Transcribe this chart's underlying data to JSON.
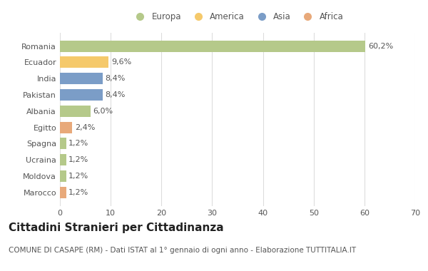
{
  "countries": [
    "Romania",
    "Ecuador",
    "India",
    "Pakistan",
    "Albania",
    "Egitto",
    "Spagna",
    "Ucraina",
    "Moldova",
    "Marocco"
  ],
  "values": [
    60.2,
    9.6,
    8.4,
    8.4,
    6.0,
    2.4,
    1.2,
    1.2,
    1.2,
    1.2
  ],
  "labels": [
    "60,2%",
    "9,6%",
    "8,4%",
    "8,4%",
    "6,0%",
    "2,4%",
    "1,2%",
    "1,2%",
    "1,2%",
    "1,2%"
  ],
  "colors": [
    "#b5c98a",
    "#f5c96b",
    "#7b9dc7",
    "#7b9dc7",
    "#b5c98a",
    "#e8a97a",
    "#b5c98a",
    "#b5c98a",
    "#b5c98a",
    "#e8a97a"
  ],
  "legend_labels": [
    "Europa",
    "America",
    "Asia",
    "Africa"
  ],
  "legend_colors": [
    "#b5c98a",
    "#f5c96b",
    "#7b9dc7",
    "#e8a97a"
  ],
  "title": "Cittadini Stranieri per Cittadinanza",
  "subtitle": "COMUNE DI CASAPE (RM) - Dati ISTAT al 1° gennaio di ogni anno - Elaborazione TUTTITALIA.IT",
  "xlim": [
    0,
    70
  ],
  "xticks": [
    0,
    10,
    20,
    30,
    40,
    50,
    60,
    70
  ],
  "background_color": "#ffffff",
  "grid_color": "#dddddd",
  "title_fontsize": 11,
  "subtitle_fontsize": 7.5,
  "label_fontsize": 8,
  "tick_fontsize": 8,
  "legend_fontsize": 8.5
}
